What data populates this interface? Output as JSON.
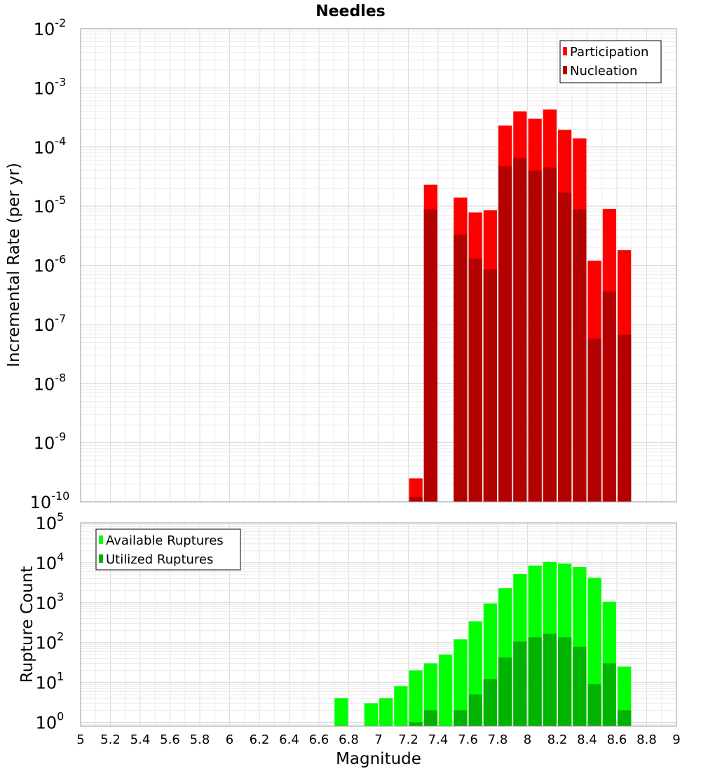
{
  "chart_data": [
    {
      "type": "bar",
      "title": "Needles",
      "ylabel": "Incremental Rate (per yr)",
      "xlabel": "",
      "xlim": [
        5,
        9
      ],
      "ylim": [
        1e-10,
        0.01
      ],
      "yscale": "log",
      "bar_width": 0.1,
      "y_ticks": [
        {
          "base": "10",
          "exp": "-10"
        },
        {
          "base": "10",
          "exp": "-9"
        },
        {
          "base": "10",
          "exp": "-8"
        },
        {
          "base": "10",
          "exp": "-7"
        },
        {
          "base": "10",
          "exp": "-6"
        },
        {
          "base": "10",
          "exp": "-5"
        },
        {
          "base": "10",
          "exp": "-4"
        },
        {
          "base": "10",
          "exp": "-3"
        },
        {
          "base": "10",
          "exp": "-2"
        }
      ],
      "legend_position": "top-right",
      "series": [
        {
          "name": "Participation",
          "color": "#ff0000",
          "x": [
            7.25,
            7.35,
            7.55,
            7.65,
            7.75,
            7.85,
            7.95,
            8.05,
            8.15,
            8.25,
            8.35,
            8.45,
            8.55,
            8.65
          ],
          "values": [
            2.5e-10,
            2.3e-05,
            1.4e-05,
            7.8e-06,
            8.5e-06,
            0.00023,
            0.0004,
            0.0003,
            0.00043,
            0.000195,
            0.00014,
            1.2e-06,
            9e-06,
            1.8e-06
          ]
        },
        {
          "name": "Nucleation",
          "color": "#b30000",
          "x": [
            7.25,
            7.35,
            7.55,
            7.65,
            7.75,
            7.85,
            7.95,
            8.05,
            8.15,
            8.25,
            8.35,
            8.45,
            8.55,
            8.65
          ],
          "values": [
            1.2e-10,
            8.8e-06,
            3.3e-06,
            1.3e-06,
            8.5e-07,
            4.7e-05,
            6.5e-05,
            4e-05,
            4.5e-05,
            1.7e-05,
            8.8e-06,
            5.8e-08,
            3.6e-07,
            6.7e-08
          ]
        }
      ]
    },
    {
      "type": "bar",
      "title": "",
      "ylabel": "Rupture Count",
      "xlabel": "Magnitude",
      "xlim": [
        5,
        9
      ],
      "ylim": [
        0.8,
        100000.0
      ],
      "yscale": "log",
      "bar_width": 0.1,
      "x_ticks": [
        "5",
        "5.2",
        "5.4",
        "5.6",
        "5.8",
        "6",
        "6.2",
        "6.4",
        "6.6",
        "6.8",
        "7",
        "7.2",
        "7.4",
        "7.6",
        "7.8",
        "8",
        "8.2",
        "8.4",
        "8.6",
        "8.8",
        "9"
      ],
      "y_ticks": [
        {
          "base": "10",
          "exp": "0"
        },
        {
          "base": "10",
          "exp": "1"
        },
        {
          "base": "10",
          "exp": "2"
        },
        {
          "base": "10",
          "exp": "3"
        },
        {
          "base": "10",
          "exp": "4"
        },
        {
          "base": "10",
          "exp": "5"
        }
      ],
      "legend_position": "top-left",
      "series": [
        {
          "name": "Available Ruptures",
          "color": "#00ff00",
          "x": [
            6.75,
            6.95,
            7.05,
            7.15,
            7.25,
            7.35,
            7.45,
            7.55,
            7.65,
            7.75,
            7.85,
            7.95,
            8.05,
            8.15,
            8.25,
            8.35,
            8.45,
            8.55,
            8.65
          ],
          "values": [
            4,
            3,
            4,
            8,
            20,
            30,
            50,
            120,
            340,
            950,
            2300,
            5200,
            8500,
            10500,
            9500,
            7800,
            4200,
            1050,
            25
          ]
        },
        {
          "name": "Utilized Ruptures",
          "color": "#00b300",
          "x": [
            7.25,
            7.35,
            7.55,
            7.65,
            7.75,
            7.85,
            7.95,
            8.05,
            8.15,
            8.25,
            8.35,
            8.45,
            8.55,
            8.65
          ],
          "values": [
            1,
            2,
            2,
            5,
            12,
            42,
            105,
            135,
            165,
            135,
            78,
            9,
            30,
            2
          ]
        }
      ]
    }
  ]
}
